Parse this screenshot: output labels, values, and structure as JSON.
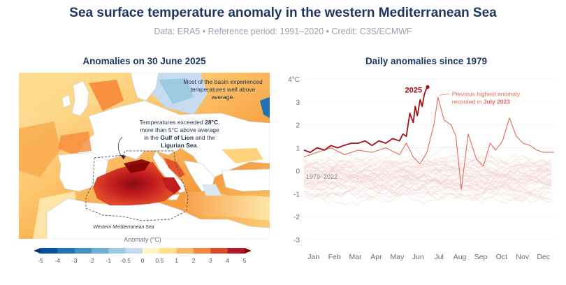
{
  "title": "Sea surface temperature anomaly in the western Mediterranean Sea",
  "subtitle": "Data: ERA5 • Reference period: 1991–2020 • Credit: C3S/ECMWF",
  "map_panel": {
    "title": "Anomalies on 30 June 2025",
    "note_top_right": "Most of the basin experienced temperatures well above average.",
    "note_center_parts": [
      "Temperatures exceeded ",
      "28°C",
      ",",
      "more than 5°C above average",
      "in the ",
      "Gulf of Lion",
      " and the",
      "Ligurian Sea",
      "."
    ],
    "region_label": "Western Mediterranean Sea",
    "colorbar": {
      "title": "Anomaly (°C)",
      "ticks": [
        "-5",
        "-4",
        "-3",
        "-2",
        "-1",
        "-0.5",
        "0",
        "0.5",
        "1",
        "2",
        "3",
        "4",
        "5"
      ],
      "colors": [
        "#08306b",
        "#08519c",
        "#2171b5",
        "#4292c6",
        "#6baed6",
        "#9ecae1",
        "#c6dbef",
        "#fff5c8",
        "#fee08b",
        "#fdb863",
        "#f4873e",
        "#e0482a",
        "#b2182b",
        "#7f0000"
      ]
    }
  },
  "chart_panel": {
    "title": "Daily anomalies since 1979"
  },
  "chart_data": {
    "type": "line",
    "title": "Daily anomalies since 1979",
    "xlabel": "",
    "ylabel": "",
    "ylim": [
      -3,
      4
    ],
    "y_ticks": [
      "4°C",
      "3",
      "2",
      "1",
      "0",
      "-1",
      "-2",
      "-3"
    ],
    "x_ticks": [
      "Jan",
      "Feb",
      "Mar",
      "Apr",
      "May",
      "Jun",
      "Jul",
      "Aug",
      "Sep",
      "Oct",
      "Nov",
      "Dec"
    ],
    "grid": true,
    "colors": {
      "y2025": "#a50f15",
      "y2023": "#e06a55",
      "background": "#f2d6d2"
    },
    "series": [
      {
        "name": "2025",
        "x": [
          1,
          10,
          20,
          31,
          40,
          50,
          59,
          70,
          80,
          90,
          100,
          110,
          120,
          130,
          140,
          145,
          150,
          155,
          160,
          163,
          166,
          170,
          173,
          176,
          178,
          181
        ],
        "values": [
          0.9,
          0.8,
          1.0,
          0.9,
          1.1,
          1.0,
          1.1,
          1.2,
          1.2,
          1.3,
          1.1,
          1.3,
          1.2,
          1.4,
          1.3,
          1.6,
          1.5,
          2.5,
          2.1,
          2.8,
          2.4,
          3.1,
          2.8,
          3.3,
          3.5,
          3.65
        ]
      },
      {
        "name": "2023",
        "x": [
          1,
          20,
          40,
          60,
          80,
          100,
          120,
          140,
          150,
          160,
          170,
          180,
          190,
          196,
          205,
          215,
          222,
          230,
          240,
          252,
          262,
          272,
          280,
          290,
          300,
          310,
          320,
          330,
          340,
          350,
          365
        ],
        "values": [
          0.6,
          0.8,
          1.0,
          0.7,
          0.9,
          0.8,
          1.0,
          0.7,
          1.2,
          0.6,
          0.3,
          0.8,
          2.0,
          3.2,
          2.2,
          2.0,
          1.5,
          -0.8,
          1.6,
          0.5,
          0.2,
          1.2,
          0.9,
          1.3,
          2.3,
          1.5,
          1.2,
          1.1,
          0.9,
          0.8,
          0.8
        ]
      }
    ],
    "background_range": "1979–2022",
    "annotations": {
      "label_2025": "2025",
      "label_2023_line1": "Previous highest anomaly",
      "label_2023_line2_prefix": "recorded in ",
      "label_2023_line2_bold": "July 2023"
    }
  }
}
